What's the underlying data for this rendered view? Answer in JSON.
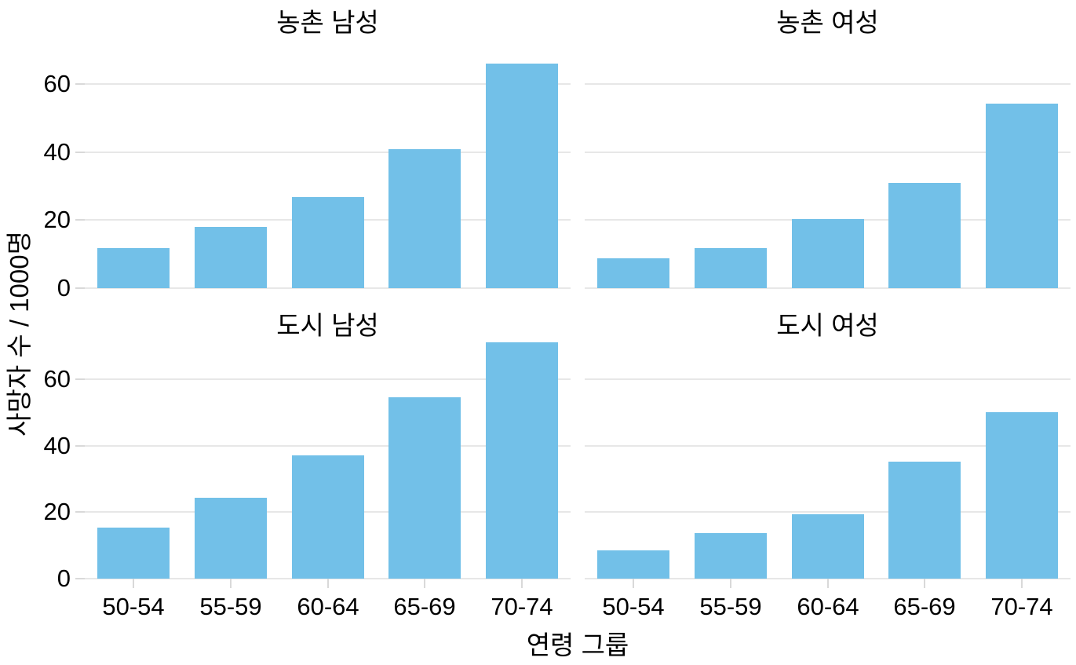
{
  "figure": {
    "background": "#ffffff",
    "bar_color": "#72c0e8",
    "grid_color": "#e7e7e7",
    "tick_color": "#d9d9d9",
    "text_color": "#000000"
  },
  "chart_data": {
    "type": "bar",
    "layout": "2x2-facets",
    "title": "",
    "xlabel": "연령 그룹",
    "ylabel": "사망자 수 / 1000명",
    "categories": [
      "50-54",
      "55-59",
      "60-64",
      "65-69",
      "70-74"
    ],
    "yticks": [
      0,
      20,
      40,
      60
    ],
    "grid": true,
    "legend": "none",
    "row_ylim": [
      [
        0,
        69.3
      ],
      [
        0,
        74.66
      ]
    ],
    "panels": [
      {
        "row": 0,
        "col": 0,
        "title": "농촌 남성",
        "values": [
          11.7,
          18.1,
          26.9,
          41.0,
          66.0
        ]
      },
      {
        "row": 0,
        "col": 1,
        "title": "농촌 여성",
        "values": [
          8.7,
          11.7,
          20.3,
          30.9,
          54.3
        ]
      },
      {
        "row": 1,
        "col": 0,
        "title": "도시 남성",
        "values": [
          15.4,
          24.3,
          37.0,
          54.6,
          71.1
        ]
      },
      {
        "row": 1,
        "col": 1,
        "title": "도시 여성",
        "values": [
          8.4,
          13.6,
          19.3,
          35.1,
          50.0
        ]
      }
    ]
  }
}
